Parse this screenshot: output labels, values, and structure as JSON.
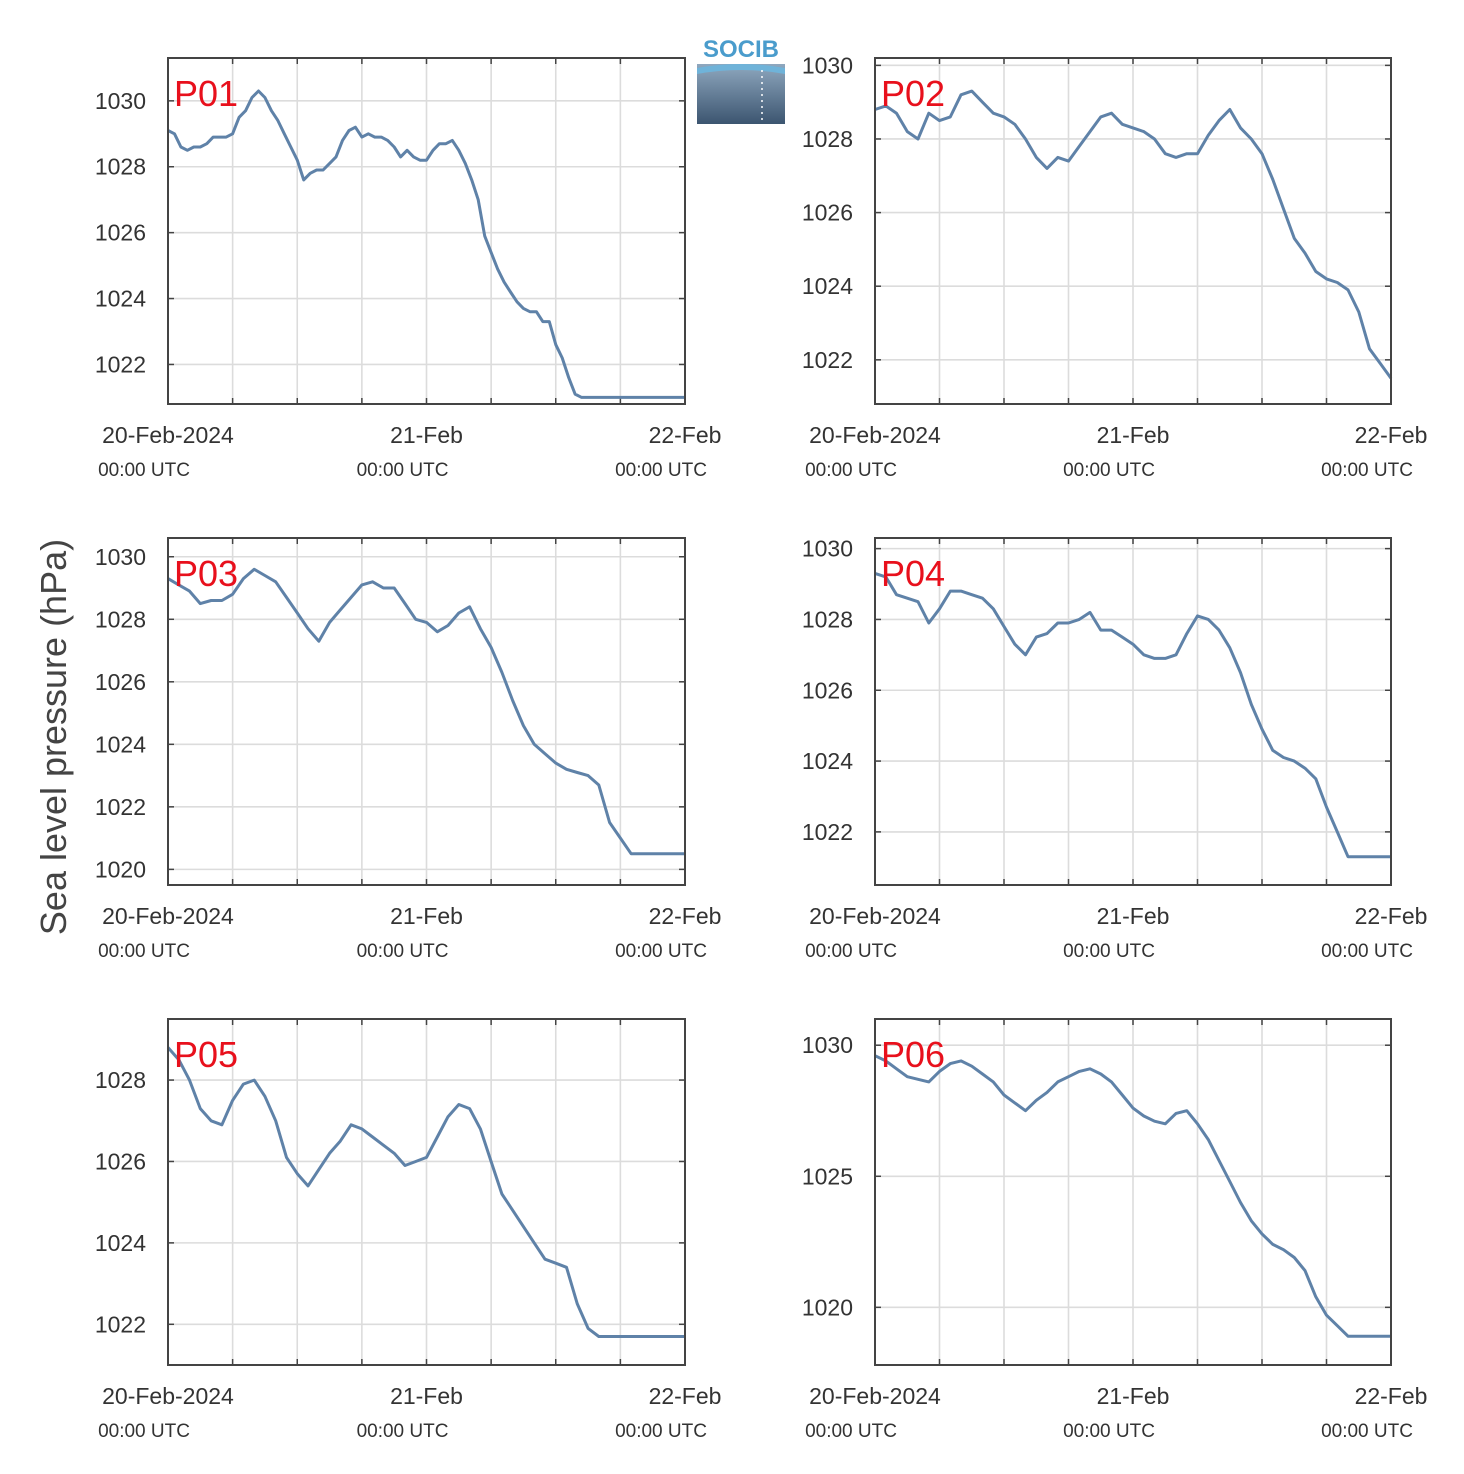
{
  "figure": {
    "ylabel": "Sea level pressure (hPa)",
    "logo_text": "SOCIB",
    "colors": {
      "line": "#5f82a8",
      "label": "#e8101c",
      "grid": "#dcdcdc",
      "axis": "#444444"
    }
  },
  "chart_data": [
    {
      "type": "line",
      "label": "P01",
      "ylim": [
        1020.8,
        1031.3
      ],
      "yticks": [
        1022,
        1024,
        1026,
        1028,
        1030
      ],
      "xlim": [
        0,
        48
      ],
      "grid": true,
      "series_color": "#5f82a8",
      "xticks": [
        {
          "x": 0,
          "line1": "20-Feb-2024",
          "line2": "00:00 UTC"
        },
        {
          "x": 24,
          "line1": "21-Feb",
          "line2": "00:00 UTC"
        },
        {
          "x": 48,
          "line1": "22-Feb",
          "line2": "00:00 UTC"
        }
      ],
      "series": [
        {
          "x": [
            0,
            0.6,
            1.2,
            1.8,
            2.4,
            3,
            3.6,
            4.2,
            4.8,
            5.4,
            6,
            6.6,
            7.2,
            7.8,
            8.4,
            9,
            9.6,
            10.2,
            10.8,
            11.4,
            12,
            12.6,
            13.2,
            13.8,
            14.4,
            15,
            15.6,
            16.2,
            16.8,
            17.4,
            18,
            18.6,
            19.2,
            19.8,
            20.4,
            21,
            21.6,
            22.2,
            22.8,
            23.4,
            24,
            24.6,
            25.2,
            25.8,
            26.4,
            27,
            27.6,
            28.2,
            28.8,
            29.4,
            30,
            30.6,
            31.2,
            31.8,
            32.4,
            33,
            33.6,
            34.2,
            34.8,
            35.4,
            36,
            36.6,
            37.2,
            37.8,
            38.4,
            39,
            39.6,
            40.2,
            40.8,
            41.4,
            42,
            42.6,
            43.2,
            43.8,
            44.4,
            45,
            45.6,
            46.2,
            46.8,
            47.4,
            48
          ],
          "values": [
            1029.1,
            1029.0,
            1028.6,
            1028.5,
            1028.6,
            1028.6,
            1028.7,
            1028.9,
            1028.9,
            1028.9,
            1029.0,
            1029.5,
            1029.7,
            1030.1,
            1030.3,
            1030.1,
            1029.7,
            1029.4,
            1029.0,
            1028.6,
            1028.2,
            1027.6,
            1027.8,
            1027.9,
            1027.9,
            1028.1,
            1028.3,
            1028.8,
            1029.1,
            1029.2,
            1028.9,
            1029.0,
            1028.9,
            1028.9,
            1028.8,
            1028.6,
            1028.3,
            1028.5,
            1028.3,
            1028.2,
            1028.2,
            1028.5,
            1028.7,
            1028.7,
            1028.8,
            1028.5,
            1028.1,
            1027.6,
            1027.0,
            1025.9,
            1025.4,
            1024.9,
            1024.5,
            1024.2,
            1023.9,
            1023.7,
            1023.6,
            1023.6,
            1023.3,
            1023.3,
            1022.6,
            1022.2,
            1021.6,
            1021.1,
            1021.0,
            1021.0,
            1021.0,
            1021.0,
            1021.0,
            1021.0,
            1021.0,
            1021.0,
            1021.0,
            1021.0,
            1021.0,
            1021.0,
            1021.0,
            1021.0,
            1021.0,
            1021.0,
            1021.0
          ]
        }
      ]
    },
    {
      "type": "line",
      "label": "P02",
      "ylim": [
        1020.8,
        1030.2
      ],
      "yticks": [
        1022,
        1024,
        1026,
        1028,
        1030
      ],
      "xlim": [
        0,
        48
      ],
      "grid": true,
      "series_color": "#5f82a8",
      "xticks": [
        {
          "x": 0,
          "line1": "20-Feb-2024",
          "line2": "00:00 UTC"
        },
        {
          "x": 24,
          "line1": "21-Feb",
          "line2": "00:00 UTC"
        },
        {
          "x": 48,
          "line1": "22-Feb",
          "line2": "00:00 UTC"
        }
      ],
      "series": [
        {
          "x": [
            0,
            1,
            2,
            3,
            4,
            5,
            6,
            7,
            8,
            9,
            10,
            11,
            12,
            13,
            14,
            15,
            16,
            17,
            18,
            19,
            20,
            21,
            22,
            23,
            24,
            25,
            26,
            27,
            28,
            29,
            30,
            31,
            32,
            33,
            34,
            35,
            36,
            37,
            38,
            39,
            40,
            41,
            42,
            43,
            44,
            45,
            46,
            47,
            48
          ],
          "values": [
            1028.8,
            1028.9,
            1028.7,
            1028.2,
            1028.0,
            1028.7,
            1028.5,
            1028.6,
            1029.2,
            1029.3,
            1029.0,
            1028.7,
            1028.6,
            1028.4,
            1028.0,
            1027.5,
            1027.2,
            1027.5,
            1027.4,
            1027.8,
            1028.2,
            1028.6,
            1028.7,
            1028.4,
            1028.3,
            1028.2,
            1028.0,
            1027.6,
            1027.5,
            1027.6,
            1027.6,
            1028.1,
            1028.5,
            1028.8,
            1028.3,
            1028.0,
            1027.6,
            1026.9,
            1026.1,
            1025.3,
            1024.9,
            1024.4,
            1024.2,
            1024.1,
            1023.9,
            1023.3,
            1022.3,
            1021.9,
            1021.5
          ]
        }
      ]
    },
    {
      "type": "line",
      "label": "P03",
      "ylim": [
        1019.5,
        1030.6
      ],
      "yticks": [
        1020,
        1022,
        1024,
        1026,
        1028,
        1030
      ],
      "xlim": [
        0,
        48
      ],
      "grid": true,
      "series_color": "#5f82a8",
      "xticks": [
        {
          "x": 0,
          "line1": "20-Feb-2024",
          "line2": "00:00 UTC"
        },
        {
          "x": 24,
          "line1": "21-Feb",
          "line2": "00:00 UTC"
        },
        {
          "x": 48,
          "line1": "22-Feb",
          "line2": "00:00 UTC"
        }
      ],
      "series": [
        {
          "x": [
            0,
            1,
            2,
            3,
            4,
            5,
            6,
            7,
            8,
            9,
            10,
            11,
            12,
            13,
            14,
            15,
            16,
            17,
            18,
            19,
            20,
            21,
            22,
            23,
            24,
            25,
            26,
            27,
            28,
            29,
            30,
            31,
            32,
            33,
            34,
            35,
            36,
            37,
            38,
            39,
            40,
            41,
            42,
            43,
            44,
            45,
            46,
            47,
            48
          ],
          "values": [
            1029.3,
            1029.1,
            1028.9,
            1028.5,
            1028.6,
            1028.6,
            1028.8,
            1029.3,
            1029.6,
            1029.4,
            1029.2,
            1028.7,
            1028.2,
            1027.7,
            1027.3,
            1027.9,
            1028.3,
            1028.7,
            1029.1,
            1029.2,
            1029.0,
            1029.0,
            1028.5,
            1028.0,
            1027.9,
            1027.6,
            1027.8,
            1028.2,
            1028.4,
            1027.7,
            1027.1,
            1026.3,
            1025.4,
            1024.6,
            1024.0,
            1023.7,
            1023.4,
            1023.2,
            1023.1,
            1023.0,
            1022.7,
            1021.5,
            1021.0,
            1020.5,
            1020.5,
            1020.5,
            1020.5,
            1020.5,
            1020.5
          ]
        }
      ]
    },
    {
      "type": "line",
      "label": "P04",
      "ylim": [
        1020.5,
        1030.3
      ],
      "yticks": [
        1022,
        1024,
        1026,
        1028,
        1030
      ],
      "xlim": [
        0,
        48
      ],
      "grid": true,
      "series_color": "#5f82a8",
      "xticks": [
        {
          "x": 0,
          "line1": "20-Feb-2024",
          "line2": "00:00 UTC"
        },
        {
          "x": 24,
          "line1": "21-Feb",
          "line2": "00:00 UTC"
        },
        {
          "x": 48,
          "line1": "22-Feb",
          "line2": "00:00 UTC"
        }
      ],
      "series": [
        {
          "x": [
            0,
            1,
            2,
            3,
            4,
            5,
            6,
            7,
            8,
            9,
            10,
            11,
            12,
            13,
            14,
            15,
            16,
            17,
            18,
            19,
            20,
            21,
            22,
            23,
            24,
            25,
            26,
            27,
            28,
            29,
            30,
            31,
            32,
            33,
            34,
            35,
            36,
            37,
            38,
            39,
            40,
            41,
            42,
            43,
            44,
            45,
            46,
            47,
            48
          ],
          "values": [
            1029.3,
            1029.2,
            1028.7,
            1028.6,
            1028.5,
            1027.9,
            1028.3,
            1028.8,
            1028.8,
            1028.7,
            1028.6,
            1028.3,
            1027.8,
            1027.3,
            1027.0,
            1027.5,
            1027.6,
            1027.9,
            1027.9,
            1028.0,
            1028.2,
            1027.7,
            1027.7,
            1027.5,
            1027.3,
            1027.0,
            1026.9,
            1026.9,
            1027.0,
            1027.6,
            1028.1,
            1028.0,
            1027.7,
            1027.2,
            1026.5,
            1025.6,
            1024.9,
            1024.3,
            1024.1,
            1024.0,
            1023.8,
            1023.5,
            1022.7,
            1022.0,
            1021.3,
            1021.3,
            1021.3,
            1021.3,
            1021.3
          ]
        }
      ]
    },
    {
      "type": "line",
      "label": "P05",
      "ylim": [
        1021.0,
        1029.5
      ],
      "yticks": [
        1022,
        1024,
        1026,
        1028
      ],
      "xlim": [
        0,
        48
      ],
      "grid": true,
      "series_color": "#5f82a8",
      "xticks": [
        {
          "x": 0,
          "line1": "20-Feb-2024",
          "line2": "00:00 UTC"
        },
        {
          "x": 24,
          "line1": "21-Feb",
          "line2": "00:00 UTC"
        },
        {
          "x": 48,
          "line1": "22-Feb",
          "line2": "00:00 UTC"
        }
      ],
      "series": [
        {
          "x": [
            0,
            1,
            2,
            3,
            4,
            5,
            6,
            7,
            8,
            9,
            10,
            11,
            12,
            13,
            14,
            15,
            16,
            17,
            18,
            19,
            20,
            21,
            22,
            23,
            24,
            25,
            26,
            27,
            28,
            29,
            30,
            31,
            32,
            33,
            34,
            35,
            36,
            37,
            38,
            39,
            40,
            41,
            42,
            43,
            44,
            45,
            46,
            47,
            48
          ],
          "values": [
            1028.8,
            1028.5,
            1028.0,
            1027.3,
            1027.0,
            1026.9,
            1027.5,
            1027.9,
            1028.0,
            1027.6,
            1027.0,
            1026.1,
            1025.7,
            1025.4,
            1025.8,
            1026.2,
            1026.5,
            1026.9,
            1026.8,
            1026.6,
            1026.4,
            1026.2,
            1025.9,
            1026.0,
            1026.1,
            1026.6,
            1027.1,
            1027.4,
            1027.3,
            1026.8,
            1026.0,
            1025.2,
            1024.8,
            1024.4,
            1024.0,
            1023.6,
            1023.5,
            1023.4,
            1022.5,
            1021.9,
            1021.7,
            1021.7,
            1021.7,
            1021.7,
            1021.7,
            1021.7,
            1021.7,
            1021.7,
            1021.7
          ]
        }
      ]
    },
    {
      "type": "line",
      "label": "P06",
      "ylim": [
        1017.8,
        1031.0
      ],
      "yticks": [
        1020,
        1025,
        1030
      ],
      "xlim": [
        0,
        48
      ],
      "grid": true,
      "series_color": "#5f82a8",
      "xticks": [
        {
          "x": 0,
          "line1": "20-Feb-2024",
          "line2": "00:00 UTC"
        },
        {
          "x": 24,
          "line1": "21-Feb",
          "line2": "00:00 UTC"
        },
        {
          "x": 48,
          "line1": "22-Feb",
          "line2": "00:00 UTC"
        }
      ],
      "series": [
        {
          "x": [
            0,
            1,
            2,
            3,
            4,
            5,
            6,
            7,
            8,
            9,
            10,
            11,
            12,
            13,
            14,
            15,
            16,
            17,
            18,
            19,
            20,
            21,
            22,
            23,
            24,
            25,
            26,
            27,
            28,
            29,
            30,
            31,
            32,
            33,
            34,
            35,
            36,
            37,
            38,
            39,
            40,
            41,
            42,
            43,
            44,
            45,
            46,
            47,
            48
          ],
          "values": [
            1029.6,
            1029.4,
            1029.1,
            1028.8,
            1028.7,
            1028.6,
            1029.0,
            1029.3,
            1029.4,
            1029.2,
            1028.9,
            1028.6,
            1028.1,
            1027.8,
            1027.5,
            1027.9,
            1028.2,
            1028.6,
            1028.8,
            1029.0,
            1029.1,
            1028.9,
            1028.6,
            1028.1,
            1027.6,
            1027.3,
            1027.1,
            1027.0,
            1027.4,
            1027.5,
            1027.0,
            1026.4,
            1025.6,
            1024.8,
            1024.0,
            1023.3,
            1022.8,
            1022.4,
            1022.2,
            1021.9,
            1021.4,
            1020.4,
            1019.7,
            1019.3,
            1018.9,
            1018.9,
            1018.9,
            1018.9,
            1018.9
          ]
        }
      ]
    }
  ]
}
